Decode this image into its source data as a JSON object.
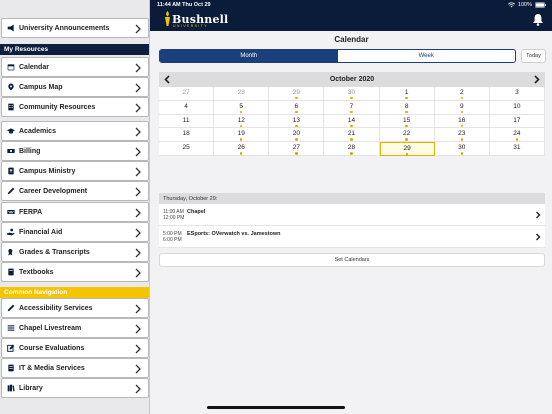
{
  "status": {
    "time": "11:44 AM  Thu Oct 29",
    "battery": "100%"
  },
  "brand": {
    "name": "Bushnell",
    "sub": "UNIVERSITY"
  },
  "sidebar": {
    "top_item": {
      "label": "University Announcements",
      "icon": "megaphone-icon"
    },
    "my_resources_header": "My Resources",
    "my_resources": [
      {
        "label": "Calendar",
        "icon": "calendar-icon"
      },
      {
        "label": "Campus Map",
        "icon": "map-pin-icon"
      },
      {
        "label": "Community Resources",
        "icon": "building-icon"
      }
    ],
    "main_items": [
      {
        "label": "Academics",
        "icon": "graduation-cap-icon"
      },
      {
        "label": "Billing",
        "icon": "money-icon"
      },
      {
        "label": "Campus Ministry",
        "icon": "bible-icon"
      },
      {
        "label": "Career Development",
        "icon": "pen-icon"
      },
      {
        "label": "FERPA",
        "icon": "keyboard-icon"
      },
      {
        "label": "Financial Aid",
        "icon": "hand-coin-icon"
      },
      {
        "label": "Grades & Transcripts",
        "icon": "award-icon"
      },
      {
        "label": "Textbooks",
        "icon": "book-icon"
      }
    ],
    "common_header": "Common Navigation",
    "common_items": [
      {
        "label": "Accessibility Services",
        "icon": "pen-icon"
      },
      {
        "label": "Chapel Livestream",
        "icon": "list-icon"
      },
      {
        "label": "Course Evaluations",
        "icon": "edit-icon"
      },
      {
        "label": "IT & Media Services",
        "icon": "server-icon"
      },
      {
        "label": "Library",
        "icon": "books-icon"
      }
    ]
  },
  "calendar": {
    "title": "Calendar",
    "view_month": "Month",
    "view_week": "Week",
    "today": "Today",
    "month_label": "October 2020",
    "weeks": [
      [
        {
          "d": "27",
          "m": true
        },
        {
          "d": "28",
          "m": true
        },
        {
          "d": "29",
          "m": true,
          "dot": true
        },
        {
          "d": "30",
          "m": true,
          "dot": true
        },
        {
          "d": "1",
          "dot": true
        },
        {
          "d": "2",
          "dot": true
        },
        {
          "d": "3"
        }
      ],
      [
        {
          "d": "4"
        },
        {
          "d": "5",
          "dot": true
        },
        {
          "d": "6",
          "dot": true
        },
        {
          "d": "7",
          "dot": true
        },
        {
          "d": "8",
          "dot": true
        },
        {
          "d": "9",
          "dot": true
        },
        {
          "d": "10"
        }
      ],
      [
        {
          "d": "11"
        },
        {
          "d": "12",
          "dot": true
        },
        {
          "d": "13",
          "dot": true
        },
        {
          "d": "14",
          "dot": true
        },
        {
          "d": "15",
          "dot": true
        },
        {
          "d": "16",
          "dot": true
        },
        {
          "d": "17"
        }
      ],
      [
        {
          "d": "18"
        },
        {
          "d": "19",
          "dot": true
        },
        {
          "d": "20",
          "dot": true
        },
        {
          "d": "21",
          "dot": true
        },
        {
          "d": "22",
          "dot": true
        },
        {
          "d": "23",
          "dot": true
        },
        {
          "d": "24",
          "dot": true
        }
      ],
      [
        {
          "d": "25"
        },
        {
          "d": "26",
          "dot": true
        },
        {
          "d": "27",
          "dot": true
        },
        {
          "d": "28",
          "dot": true
        },
        {
          "d": "29",
          "dot": true,
          "sel": true
        },
        {
          "d": "30",
          "dot": true
        },
        {
          "d": "31"
        }
      ]
    ],
    "agenda_date": "Thursday, October 29:",
    "events": [
      {
        "start": "11:00 AM",
        "end": "12:00 PM",
        "title": "Chapel"
      },
      {
        "start": "5:00 PM",
        "end": "6:00 PM",
        "title": "ESports: OVerwatch vs. Jamestown"
      }
    ],
    "set_calendars": "Set Calendars"
  },
  "colors": {
    "navy": "#0b1c3a",
    "gold": "#f5c400",
    "accent": "#1b3f7a",
    "dot": "#e0a800"
  }
}
